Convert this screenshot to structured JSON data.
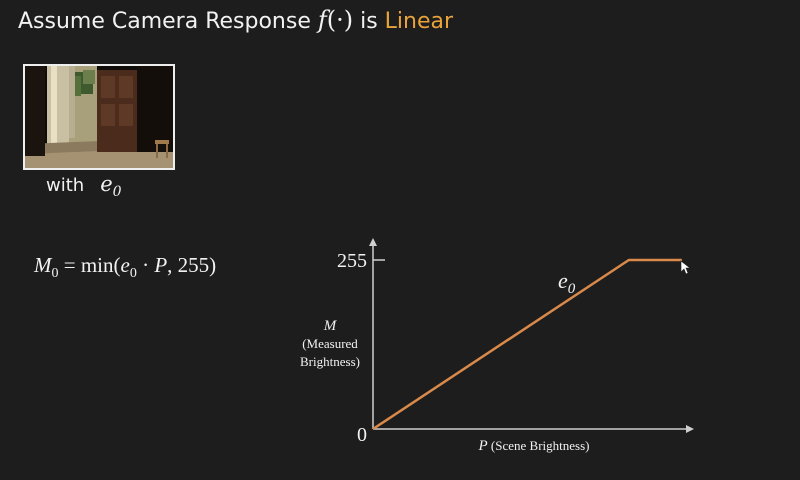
{
  "slide": {
    "title_prefix": "Assume Camera Response ",
    "title_fn_f": "f",
    "title_fn_args": "(·)",
    "title_mid": " is ",
    "title_accent": "Linear",
    "caption_with": "with",
    "caption_e": "e",
    "caption_e_sub": "0",
    "formula": {
      "M": "M",
      "M_sub": "0",
      "eq": " = min(",
      "e": "e",
      "e_sub": "0",
      "dot": " · ",
      "P": "P",
      "rest": ", 255)"
    }
  },
  "chart_data": {
    "type": "line",
    "series": [
      {
        "name": "e0",
        "x": [
          0,
          0.82,
          0.99
        ],
        "y": [
          0,
          255,
          255
        ]
      }
    ],
    "series_label": "e",
    "series_label_sub": "0",
    "ylim": [
      0,
      255
    ],
    "y_ticks": [
      "0",
      "255"
    ],
    "ylabel_symbol": "M",
    "ylabel_line1": "(Measured",
    "ylabel_line2": "Brightness)",
    "xlabel_symbol": "P",
    "xlabel_text": " (Scene Brightness)",
    "line_color": "#d98a4a",
    "axis_color": "#cfcfcf"
  },
  "colors": {
    "background": "#1d1d1d",
    "accent": "#e8a33a",
    "text": "#f2f2f2"
  }
}
